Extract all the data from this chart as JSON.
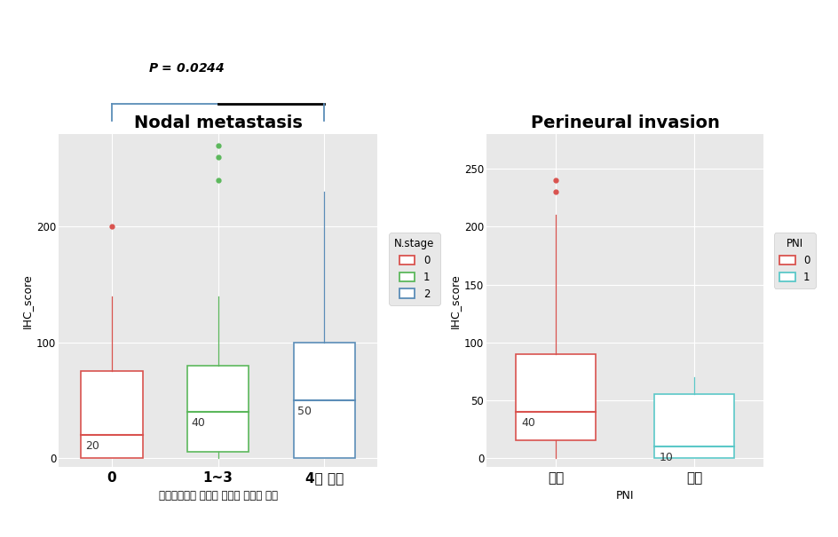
{
  "left_title": "Nodal metastasis",
  "right_title": "Perineural invasion",
  "left_ylabel": "IHC_score",
  "right_ylabel": "IHC_score",
  "left_xlabel": "대장암세포의 전이가 확인된 림프절 갯수",
  "right_xlabel": "PNI",
  "left_xtick_labels": [
    "0",
    "1~3",
    "4개 이상"
  ],
  "right_xtick_labels": [
    "없음",
    "있음"
  ],
  "left_legend_title": "N.stage",
  "right_legend_title": "PNI",
  "left_legend_labels": [
    "0",
    "1",
    "2"
  ],
  "right_legend_labels": [
    "0",
    "1"
  ],
  "left_colors": [
    "#d9534f",
    "#5cb85c",
    "#5b8db8"
  ],
  "right_colors": [
    "#d9534f",
    "#5bc8c8"
  ],
  "pvalue_text": "ρ = 0.0244",
  "pvalue_display": "P = 0.0244",
  "left_ylim": [
    -8,
    280
  ],
  "right_ylim": [
    -8,
    280
  ],
  "left_yticks": [
    0,
    100,
    200
  ],
  "right_yticks": [
    0,
    50,
    100,
    150,
    200,
    250
  ],
  "left_boxes": [
    {
      "q1": 0,
      "median": 20,
      "q3": 75,
      "whisker_low": 0,
      "whisker_high": 140,
      "outliers": [
        200
      ]
    },
    {
      "q1": 5,
      "median": 40,
      "q3": 80,
      "whisker_low": 0,
      "whisker_high": 140,
      "outliers": [
        240,
        260,
        270
      ]
    },
    {
      "q1": 0,
      "median": 50,
      "q3": 100,
      "whisker_low": 0,
      "whisker_high": 230,
      "outliers": []
    }
  ],
  "right_boxes": [
    {
      "q1": 15,
      "median": 40,
      "q3": 90,
      "whisker_low": 0,
      "whisker_high": 210,
      "outliers": [
        230,
        240
      ]
    },
    {
      "q1": 0,
      "median": 10,
      "q3": 55,
      "whisker_low": 0,
      "whisker_high": 70,
      "outliers": []
    }
  ],
  "bg_color": "#e8e8e8",
  "fig_bg_color": "#ffffff",
  "grid_color": "#ffffff"
}
